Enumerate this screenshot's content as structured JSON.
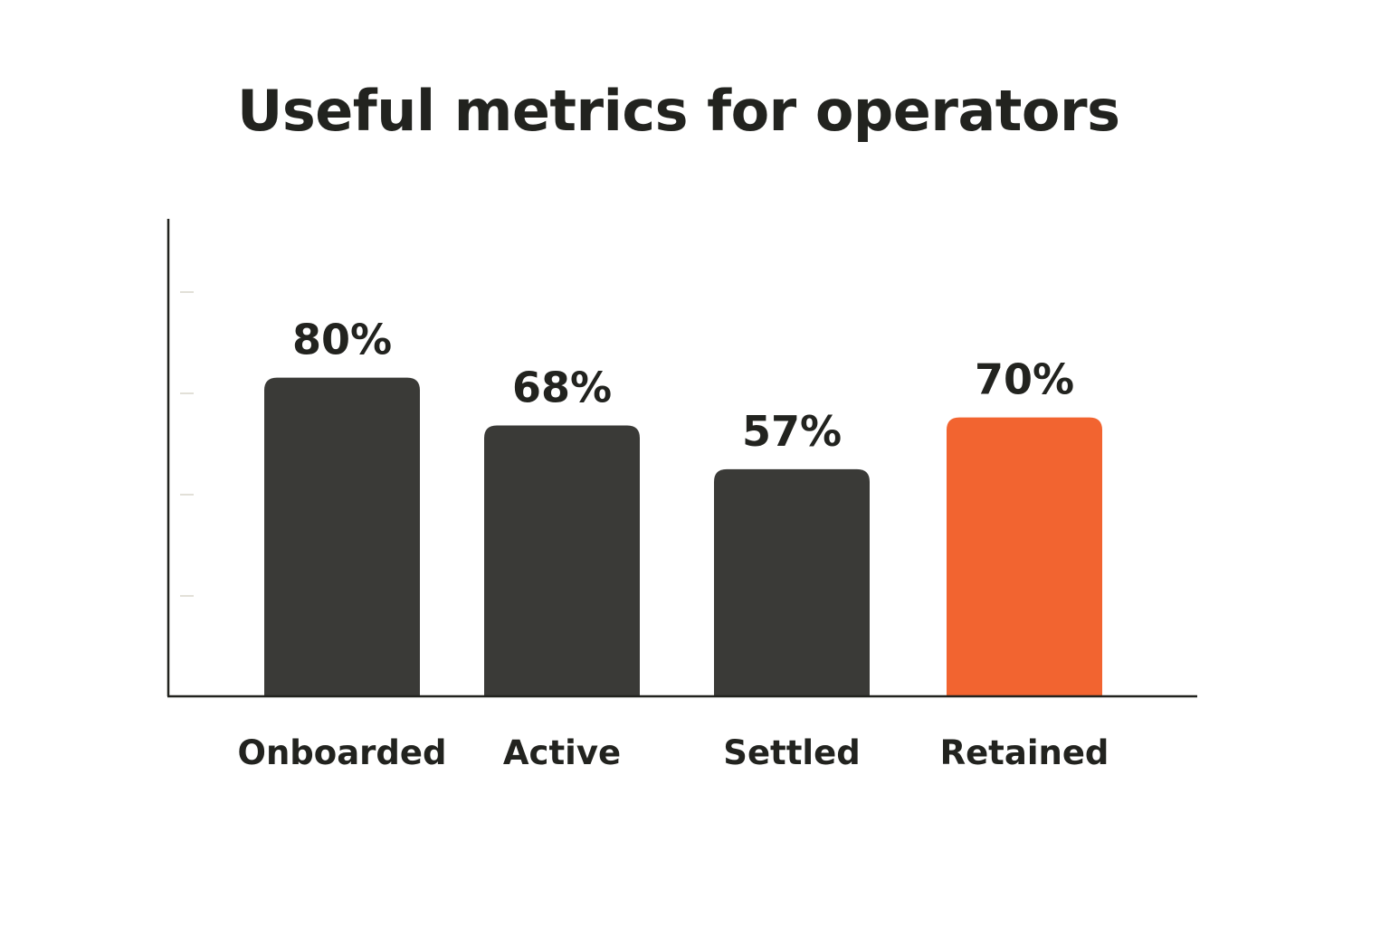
{
  "chart_data": {
    "type": "bar",
    "title": "Useful metrics for operators",
    "xlabel": "",
    "ylabel": "",
    "categories": [
      "Onboarded",
      "Active",
      "Settled",
      "Retained"
    ],
    "values": [
      80,
      68,
      57,
      70
    ],
    "value_labels": [
      "80%",
      "68%",
      "57%",
      "70%"
    ],
    "highlight_index": 3,
    "colors": {
      "default_bar": "#3a3a37",
      "highlight_bar": "#f26430",
      "axis": "#22231f",
      "text": "#22231f",
      "tick": "#e2e0d8"
    },
    "grid": false,
    "legend": "none"
  }
}
